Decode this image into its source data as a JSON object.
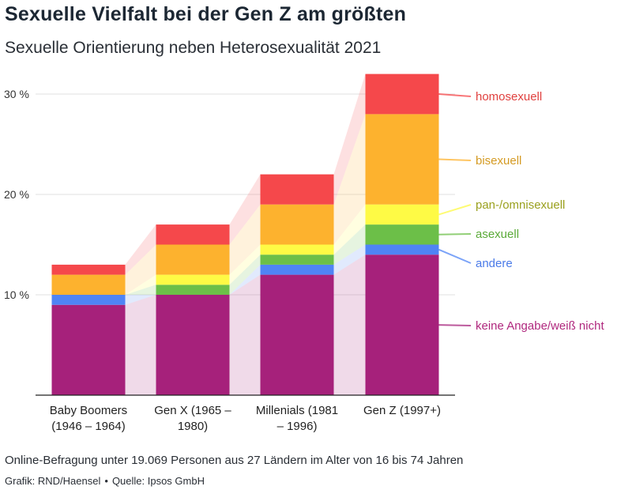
{
  "header": {
    "title": "Sexuelle Vielfalt bei der Gen Z am größten",
    "subtitle": "Sexuelle Orientierung neben Heterosexualität 2021"
  },
  "footer": {
    "note": "Online-Befragung unter 19.069 Personen aus 27 Ländern im Alter von 16 bis 74 Jahren",
    "graphic": "Grafik: RND/Haensel",
    "separator": "•",
    "source": "Quelle: Ipsos GmbH"
  },
  "chart_data": {
    "type": "bar",
    "stacked": true,
    "title": "Sexuelle Vielfalt bei der Gen Z am größten",
    "subtitle": "Sexuelle Orientierung neben Heterosexualität 2021",
    "categories": [
      [
        "Baby Boomers",
        "(1946 – 1964)"
      ],
      [
        "Gen X (1965 –",
        "1980)"
      ],
      [
        "Millenials (1981",
        "– 1996)"
      ],
      [
        "Gen Z (1997+)"
      ]
    ],
    "series": [
      {
        "name": "keine Angabe/weiß nicht",
        "color": "#a6217b",
        "values": [
          9,
          10,
          12,
          14
        ]
      },
      {
        "name": "andere",
        "color": "#4f84f5",
        "values": [
          1,
          0,
          1,
          1
        ]
      },
      {
        "name": "asexuell",
        "color": "#6cbf48",
        "values": [
          0,
          1,
          1,
          2
        ]
      },
      {
        "name": "pan-/omnisexuell",
        "color": "#fefa45",
        "values": [
          0,
          1,
          1,
          2
        ]
      },
      {
        "name": "bisexuell",
        "color": "#fdb22e",
        "values": [
          2,
          3,
          4,
          9
        ]
      },
      {
        "name": "homosexuell",
        "color": "#f5484b",
        "values": [
          1,
          2,
          3,
          4
        ]
      }
    ],
    "legend_label_colors": {
      "homosexuell": "#e0413f",
      "bisexuell": "#d49a22",
      "pan-/omnisexuell": "#9aa01e",
      "asexuell": "#5aaa38",
      "andere": "#4a7ae8",
      "keine Angabe/weiß nicht": "#b0287e"
    },
    "y_ticks": [
      10,
      20,
      30
    ],
    "y_tick_suffix": " %",
    "ylim": [
      0,
      32
    ],
    "grid": true,
    "legend_placement": "right"
  }
}
